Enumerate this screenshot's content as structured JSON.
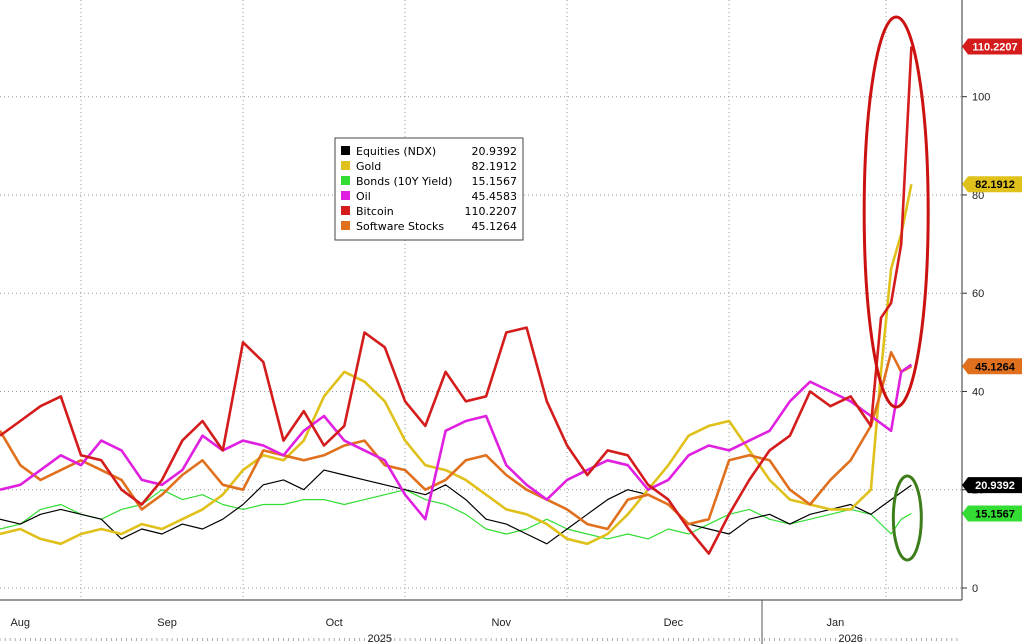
{
  "chart_data": {
    "type": "line",
    "title": "",
    "xlabel": "",
    "ylabel": "",
    "ylim": [
      0,
      115
    ],
    "yticks": [
      0,
      20,
      40,
      60,
      80,
      100
    ],
    "ytick_labels": [
      "0",
      "20",
      "40",
      "60",
      "80",
      "100"
    ],
    "x_months": [
      "Aug",
      "Sep",
      "Oct",
      "Nov",
      "Dec",
      "Jan"
    ],
    "year_labels": [
      "2025",
      "2026"
    ],
    "grid": true,
    "legend_position": "upper-center",
    "series": [
      {
        "name": "Equities (NDX)",
        "last": "20.9392",
        "color": "#000000",
        "x": [
          0,
          4,
          8,
          12,
          16,
          20,
          24,
          28,
          32,
          36,
          40,
          44,
          48,
          52,
          56,
          60,
          64,
          68,
          72,
          76,
          80,
          84,
          88,
          92,
          96,
          100,
          104,
          108,
          112,
          116,
          120,
          124,
          128,
          132,
          136,
          140,
          144,
          148,
          152,
          156,
          160,
          164,
          168,
          172,
          176,
          180
        ],
        "values": [
          14,
          13,
          15,
          16,
          15,
          14,
          10,
          12,
          11,
          13,
          12,
          14,
          17,
          21,
          22,
          20,
          24,
          23,
          22,
          21,
          20,
          19,
          21,
          18,
          14,
          13,
          11,
          9,
          12,
          15,
          18,
          20,
          19,
          17,
          13,
          12,
          11,
          14,
          15,
          13,
          15,
          16,
          17,
          15,
          18,
          20.9392
        ]
      },
      {
        "name": "Gold",
        "last": "82.1912",
        "color": "#e0c01a",
        "x": [
          0,
          4,
          8,
          12,
          16,
          20,
          24,
          28,
          32,
          36,
          40,
          44,
          48,
          52,
          56,
          60,
          64,
          68,
          72,
          76,
          80,
          84,
          88,
          92,
          96,
          100,
          104,
          108,
          112,
          116,
          120,
          124,
          128,
          132,
          136,
          140,
          144,
          148,
          152,
          156,
          160,
          164,
          168,
          172,
          174,
          176,
          178,
          180
        ],
        "values": [
          11,
          12,
          10,
          9,
          11,
          12,
          11,
          13,
          12,
          14,
          16,
          19,
          24,
          27,
          26,
          30,
          39,
          44,
          42,
          38,
          30,
          25,
          24,
          22,
          19,
          16,
          15,
          13,
          10,
          9,
          11,
          15,
          20,
          25,
          31,
          33,
          34,
          28,
          22,
          18,
          17,
          16,
          16,
          20,
          44,
          65,
          72,
          82.1912
        ]
      },
      {
        "name": "Bonds (10Y Yield)",
        "last": "15.1567",
        "color": "#33dd33",
        "x": [
          0,
          4,
          8,
          12,
          16,
          20,
          24,
          28,
          32,
          36,
          40,
          44,
          48,
          52,
          56,
          60,
          64,
          68,
          72,
          76,
          80,
          84,
          88,
          92,
          96,
          100,
          104,
          108,
          112,
          116,
          120,
          124,
          128,
          132,
          136,
          140,
          144,
          148,
          152,
          156,
          160,
          164,
          168,
          172,
          176,
          178,
          180
        ],
        "values": [
          12,
          13,
          16,
          17,
          15,
          14,
          16,
          17,
          20,
          18,
          19,
          17,
          16,
          17,
          17,
          18,
          18,
          17,
          18,
          19,
          20,
          18,
          17,
          15,
          12,
          11,
          12,
          14,
          12,
          11,
          10,
          11,
          10,
          12,
          11,
          13,
          15,
          16,
          14,
          13,
          14,
          15,
          16,
          15,
          11,
          14,
          15.1567
        ]
      },
      {
        "name": "Oil",
        "last": "45.4583",
        "color": "#e020e0",
        "x": [
          0,
          4,
          8,
          12,
          16,
          20,
          24,
          28,
          32,
          36,
          40,
          44,
          48,
          52,
          56,
          60,
          64,
          68,
          72,
          76,
          80,
          84,
          88,
          92,
          96,
          100,
          104,
          108,
          112,
          116,
          120,
          124,
          128,
          132,
          136,
          140,
          144,
          148,
          152,
          156,
          160,
          164,
          168,
          172,
          176,
          178,
          180
        ],
        "values": [
          20,
          21,
          24,
          27,
          25,
          30,
          28,
          22,
          21,
          24,
          31,
          28,
          30,
          29,
          27,
          32,
          35,
          30,
          28,
          26,
          19,
          14,
          32,
          34,
          35,
          25,
          21,
          18,
          22,
          24,
          26,
          25,
          20,
          22,
          27,
          29,
          28,
          30,
          32,
          38,
          42,
          40,
          38,
          35,
          32,
          44,
          45.4583
        ]
      },
      {
        "name": "Bitcoin",
        "last": "110.2207",
        "color": "#d41c1c",
        "x": [
          0,
          4,
          8,
          12,
          16,
          20,
          24,
          28,
          32,
          36,
          40,
          44,
          48,
          52,
          56,
          60,
          64,
          68,
          72,
          76,
          80,
          84,
          88,
          92,
          96,
          100,
          104,
          108,
          112,
          116,
          120,
          124,
          128,
          132,
          136,
          140,
          144,
          148,
          152,
          156,
          160,
          164,
          168,
          172,
          174,
          176,
          178,
          180
        ],
        "values": [
          31,
          34,
          37,
          39,
          27,
          26,
          20,
          17,
          22,
          30,
          34,
          28,
          50,
          46,
          30,
          36,
          29,
          33,
          52,
          49,
          38,
          33,
          44,
          38,
          39,
          52,
          53,
          38,
          29,
          23,
          28,
          27,
          21,
          18,
          12,
          7,
          15,
          22,
          28,
          31,
          40,
          37,
          39,
          33,
          55,
          58,
          70,
          110.2207
        ]
      },
      {
        "name": "Software Stocks",
        "last": "45.1264",
        "color": "#e0701e",
        "x": [
          0,
          4,
          8,
          12,
          16,
          20,
          24,
          28,
          32,
          36,
          40,
          44,
          48,
          52,
          56,
          60,
          64,
          68,
          72,
          76,
          80,
          84,
          88,
          92,
          96,
          100,
          104,
          108,
          112,
          116,
          120,
          124,
          128,
          132,
          136,
          140,
          144,
          148,
          152,
          156,
          160,
          164,
          168,
          172,
          174,
          176,
          178,
          180
        ],
        "values": [
          32,
          25,
          22,
          24,
          26,
          24,
          22,
          16,
          19,
          23,
          26,
          21,
          20,
          28,
          27,
          26,
          27,
          29,
          30,
          25,
          24,
          20,
          22,
          26,
          27,
          23,
          20,
          18,
          16,
          13,
          12,
          18,
          19,
          17,
          13,
          14,
          26,
          27,
          26,
          20,
          17,
          22,
          26,
          33,
          40,
          48,
          44,
          45.1264
        ]
      }
    ]
  },
  "annotations": [
    {
      "name": "red-ellipse",
      "label": "",
      "color": "#cc1111"
    },
    {
      "name": "green-ellipse",
      "label": "",
      "color": "#3d7d1a"
    }
  ]
}
